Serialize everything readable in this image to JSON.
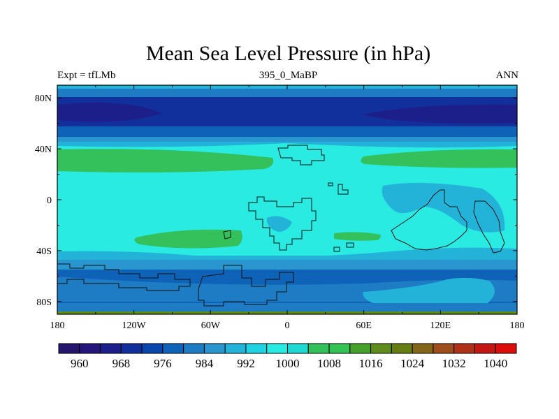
{
  "header": {
    "title": "Mean Sea Level Pressure (in hPa)",
    "left": "Expt = tfLMb",
    "center": "395_0_MaBP",
    "right": "ANN"
  },
  "chart_data": {
    "type": "heatmap",
    "title": "Mean Sea Level Pressure (in hPa)",
    "subtitle_left": "Expt = tfLMb",
    "subtitle_center": "395_0_MaBP",
    "subtitle_right": "ANN",
    "xlim": [
      -180,
      180
    ],
    "ylim": [
      -90,
      90
    ],
    "x_ticks": [
      {
        "value": -180,
        "label": "180"
      },
      {
        "value": -120,
        "label": "120W"
      },
      {
        "value": -60,
        "label": "60W"
      },
      {
        "value": 0,
        "label": "0"
      },
      {
        "value": 60,
        "label": "60E"
      },
      {
        "value": 120,
        "label": "120E"
      },
      {
        "value": 180,
        "label": "180"
      }
    ],
    "y_ticks": [
      {
        "value": 80,
        "label": "80N"
      },
      {
        "value": 40,
        "label": "40N"
      },
      {
        "value": 0,
        "label": "0"
      },
      {
        "value": -40,
        "label": "40S"
      },
      {
        "value": -80,
        "label": "80S"
      }
    ],
    "colorbar": {
      "levels": [
        956,
        960,
        964,
        968,
        972,
        976,
        980,
        984,
        988,
        992,
        996,
        1000,
        1004,
        1008,
        1012,
        1016,
        1020,
        1024,
        1028,
        1032,
        1036,
        1040,
        1044
      ],
      "labeled": [
        960,
        968,
        976,
        984,
        992,
        1000,
        1008,
        1016,
        1024,
        1032,
        1040
      ],
      "colors": [
        "#25166b",
        "#23157a",
        "#1c1f8a",
        "#12309b",
        "#0a47ad",
        "#0e62b8",
        "#1d7cc4",
        "#2a96cf",
        "#23b3d9",
        "#1fd3e2",
        "#29ebe2",
        "#1ed9d1",
        "#34c05a",
        "#33c355",
        "#45a12b",
        "#5f8d1d",
        "#667d12",
        "#83661a",
        "#9e4e1a",
        "#ad3219",
        "#c41712",
        "#de0d0d"
      ]
    },
    "fill_classes": {
      "1004": "#29ebe2",
      "996": "#23b3d9",
      "992": "#2a96cf",
      "1008": "#34c05a",
      "988": "#1d7cc4",
      "984": "#0e62b8",
      "980": "#12309b",
      "972": "#1c1f8a"
    },
    "regions": [
      {
        "name": "north-polar-low",
        "level": 972,
        "lon": [
          -180,
          180
        ],
        "lat": [
          66,
          80
        ]
      },
      {
        "name": "north-high-lat-ring",
        "level": 980,
        "lon": [
          -180,
          180
        ],
        "lat": [
          57,
          85
        ]
      },
      {
        "name": "subtropical-high-north-west",
        "level": 1008,
        "lon": [
          -178,
          -10
        ],
        "lat": [
          28,
          40
        ]
      },
      {
        "name": "subtropical-high-north-east",
        "level": 1008,
        "lon": [
          55,
          180
        ],
        "lat": [
          28,
          40
        ]
      },
      {
        "name": "subtropical-high-south-west",
        "level": 1008,
        "lon": [
          -120,
          -40
        ],
        "lat": [
          -32,
          -22
        ]
      },
      {
        "name": "subtropical-high-south-east",
        "level": 1008,
        "lon": [
          35,
          75
        ],
        "lat": [
          -28,
          -20
        ]
      },
      {
        "name": "equatorial-low-east",
        "level": 996,
        "lon": [
          75,
          180
        ],
        "lat": [
          -40,
          12
        ]
      },
      {
        "name": "southern-belt",
        "level": 984,
        "lon": [
          -180,
          180
        ],
        "lat": [
          -82,
          -56
        ]
      }
    ],
    "colorbar_orientation": "horizontal",
    "legend": "below"
  }
}
